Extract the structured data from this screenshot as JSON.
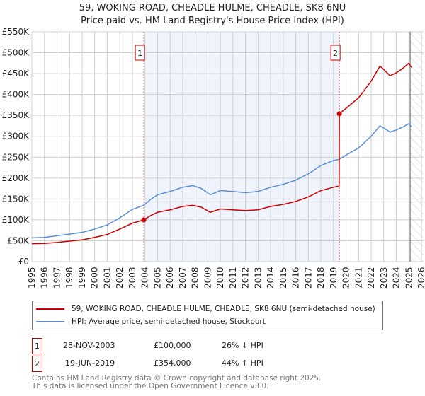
{
  "chart_data": {
    "type": "line",
    "title": "59, WOKING ROAD, CHEADLE HULME, CHEADLE, SK8 6NU",
    "subtitle": "Price paid vs. HM Land Registry's House Price Index (HPI)",
    "xlim": [
      1995,
      2026
    ],
    "ylim": [
      0,
      550000
    ],
    "x_ticks": [
      "1995",
      "1996",
      "1997",
      "1998",
      "1999",
      "2000",
      "2001",
      "2002",
      "2003",
      "2004",
      "2005",
      "2006",
      "2007",
      "2008",
      "2009",
      "2010",
      "2011",
      "2012",
      "2013",
      "2014",
      "2015",
      "2016",
      "2017",
      "2018",
      "2019",
      "2020",
      "2021",
      "2022",
      "2023",
      "2024",
      "2025",
      "2026"
    ],
    "y_ticks": [
      "£0",
      "£50K",
      "£100K",
      "£150K",
      "£200K",
      "£250K",
      "£300K",
      "£350K",
      "£400K",
      "£450K",
      "£500K",
      "£550K"
    ],
    "grid": true,
    "shaded_range": [
      2003.91,
      2019.47
    ],
    "future_hatch_from": 2025.1,
    "markers": [
      {
        "label": "1",
        "x": 2003.91,
        "y": 100000
      },
      {
        "label": "2",
        "x": 2019.47,
        "y": 354000
      }
    ],
    "series": [
      {
        "name": "59, WOKING ROAD, CHEADLE HULME, CHEADLE, SK8 6NU (semi-detached house)",
        "color": "#cc0000",
        "points": [
          [
            1995,
            43000
          ],
          [
            1996,
            43500
          ],
          [
            1997,
            46000
          ],
          [
            1998,
            49000
          ],
          [
            1999,
            52000
          ],
          [
            2000,
            58000
          ],
          [
            2001,
            65000
          ],
          [
            2002,
            78000
          ],
          [
            2003,
            92000
          ],
          [
            2003.91,
            100000
          ],
          [
            2004.5,
            111000
          ],
          [
            2005,
            118000
          ],
          [
            2006,
            124000
          ],
          [
            2007,
            132000
          ],
          [
            2007.8,
            135000
          ],
          [
            2008.5,
            130000
          ],
          [
            2009.2,
            118000
          ],
          [
            2010,
            126000
          ],
          [
            2011,
            124000
          ],
          [
            2012,
            122000
          ],
          [
            2013,
            124000
          ],
          [
            2014,
            132000
          ],
          [
            2015,
            137000
          ],
          [
            2016,
            144000
          ],
          [
            2017,
            155000
          ],
          [
            2018,
            170000
          ],
          [
            2019,
            178000
          ],
          [
            2019.45,
            181000
          ],
          [
            2019.47,
            354000
          ],
          [
            2020,
            367000
          ],
          [
            2021,
            392000
          ],
          [
            2022,
            432000
          ],
          [
            2022.7,
            468000
          ],
          [
            2023,
            460000
          ],
          [
            2023.5,
            445000
          ],
          [
            2024,
            452000
          ],
          [
            2024.5,
            462000
          ],
          [
            2025,
            475000
          ],
          [
            2025.2,
            465000
          ]
        ]
      },
      {
        "name": "HPI: Average price, semi-detached house, Stockport",
        "color": "#5b8fd6",
        "points": [
          [
            1995,
            57000
          ],
          [
            1996,
            58000
          ],
          [
            1997,
            62000
          ],
          [
            1998,
            66000
          ],
          [
            1999,
            70000
          ],
          [
            2000,
            78000
          ],
          [
            2001,
            88000
          ],
          [
            2002,
            105000
          ],
          [
            2003,
            125000
          ],
          [
            2003.91,
            135000
          ],
          [
            2004.5,
            150000
          ],
          [
            2005,
            160000
          ],
          [
            2006,
            168000
          ],
          [
            2007,
            178000
          ],
          [
            2007.8,
            182000
          ],
          [
            2008.5,
            175000
          ],
          [
            2009.2,
            160000
          ],
          [
            2010,
            170000
          ],
          [
            2011,
            168000
          ],
          [
            2012,
            165000
          ],
          [
            2013,
            168000
          ],
          [
            2014,
            178000
          ],
          [
            2015,
            185000
          ],
          [
            2016,
            195000
          ],
          [
            2017,
            210000
          ],
          [
            2018,
            230000
          ],
          [
            2019,
            242000
          ],
          [
            2019.47,
            245000
          ],
          [
            2020,
            255000
          ],
          [
            2021,
            272000
          ],
          [
            2022,
            300000
          ],
          [
            2022.7,
            325000
          ],
          [
            2023,
            320000
          ],
          [
            2023.5,
            310000
          ],
          [
            2024,
            315000
          ],
          [
            2024.5,
            322000
          ],
          [
            2025,
            330000
          ],
          [
            2025.2,
            323000
          ]
        ]
      }
    ]
  },
  "legend": {
    "red": "59, WOKING ROAD, CHEADLE HULME, CHEADLE, SK8 6NU (semi-detached house)",
    "blue": "HPI: Average price, semi-detached house, Stockport"
  },
  "transactions": [
    {
      "num": "1",
      "date": "28-NOV-2003",
      "price": "£100,000",
      "hpi": "26% ↓ HPI"
    },
    {
      "num": "2",
      "date": "19-JUN-2019",
      "price": "£354,000",
      "hpi": "44% ↑ HPI"
    }
  ],
  "footer": {
    "line1": "Contains HM Land Registry data © Crown copyright and database right 2025.",
    "line2": "This data is licensed under the Open Government Licence v3.0."
  }
}
